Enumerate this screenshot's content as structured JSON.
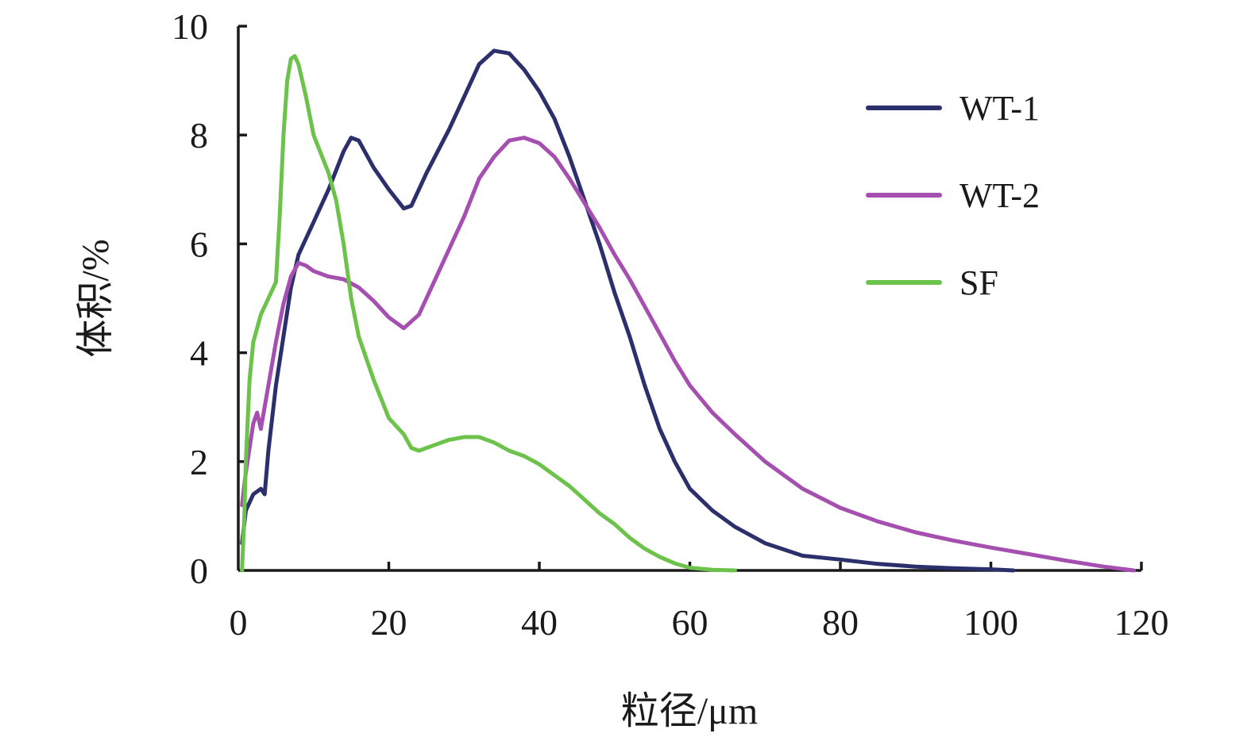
{
  "chart_data": {
    "type": "line",
    "xlabel": "粒径/μm",
    "ylabel": "体积/%",
    "xlim": [
      0,
      120
    ],
    "ylim": [
      0,
      10
    ],
    "xticks": [
      0,
      20,
      40,
      60,
      80,
      100,
      120
    ],
    "yticks": [
      0,
      2,
      4,
      6,
      8,
      10
    ],
    "xtick_labels": [
      "0",
      "20",
      "40",
      "60",
      "80",
      "100",
      "120"
    ],
    "ytick_labels": [
      "0",
      "2",
      "4",
      "6",
      "8",
      "10"
    ],
    "grid": false,
    "legend_position": "top-right",
    "series": [
      {
        "name": "WT-1",
        "color": "#2b2f6b",
        "points": [
          [
            0.5,
            0.5
          ],
          [
            1,
            1.1
          ],
          [
            2,
            1.4
          ],
          [
            3,
            1.5
          ],
          [
            3.5,
            1.4
          ],
          [
            4,
            2.2
          ],
          [
            5,
            3.4
          ],
          [
            6,
            4.3
          ],
          [
            7,
            5.2
          ],
          [
            8,
            5.8
          ],
          [
            10,
            6.4
          ],
          [
            12,
            7.0
          ],
          [
            14,
            7.7
          ],
          [
            15,
            7.95
          ],
          [
            16,
            7.9
          ],
          [
            18,
            7.4
          ],
          [
            20,
            7.0
          ],
          [
            22,
            6.65
          ],
          [
            23,
            6.7
          ],
          [
            25,
            7.3
          ],
          [
            28,
            8.1
          ],
          [
            30,
            8.7
          ],
          [
            32,
            9.3
          ],
          [
            34,
            9.55
          ],
          [
            36,
            9.5
          ],
          [
            38,
            9.2
          ],
          [
            40,
            8.8
          ],
          [
            42,
            8.3
          ],
          [
            44,
            7.6
          ],
          [
            46,
            6.8
          ],
          [
            48,
            6.0
          ],
          [
            50,
            5.1
          ],
          [
            52,
            4.3
          ],
          [
            54,
            3.4
          ],
          [
            56,
            2.6
          ],
          [
            58,
            2.0
          ],
          [
            60,
            1.5
          ],
          [
            63,
            1.1
          ],
          [
            66,
            0.8
          ],
          [
            70,
            0.5
          ],
          [
            75,
            0.27
          ],
          [
            80,
            0.2
          ],
          [
            85,
            0.12
          ],
          [
            90,
            0.07
          ],
          [
            95,
            0.04
          ],
          [
            100,
            0.02
          ],
          [
            103,
            0.0
          ]
        ]
      },
      {
        "name": "WT-2",
        "color": "#a54fb0",
        "points": [
          [
            0.5,
            1.2
          ],
          [
            1,
            1.8
          ],
          [
            2,
            2.7
          ],
          [
            2.5,
            2.9
          ],
          [
            3,
            2.6
          ],
          [
            4,
            3.4
          ],
          [
            5,
            4.2
          ],
          [
            6,
            4.9
          ],
          [
            7,
            5.4
          ],
          [
            8,
            5.65
          ],
          [
            9,
            5.6
          ],
          [
            10,
            5.5
          ],
          [
            12,
            5.4
          ],
          [
            14,
            5.35
          ],
          [
            16,
            5.2
          ],
          [
            18,
            4.95
          ],
          [
            20,
            4.65
          ],
          [
            22,
            4.45
          ],
          [
            24,
            4.7
          ],
          [
            26,
            5.3
          ],
          [
            28,
            5.9
          ],
          [
            30,
            6.5
          ],
          [
            32,
            7.2
          ],
          [
            34,
            7.6
          ],
          [
            36,
            7.9
          ],
          [
            38,
            7.95
          ],
          [
            40,
            7.85
          ],
          [
            42,
            7.6
          ],
          [
            44,
            7.2
          ],
          [
            46,
            6.75
          ],
          [
            48,
            6.3
          ],
          [
            50,
            5.8
          ],
          [
            52,
            5.35
          ],
          [
            54,
            4.85
          ],
          [
            56,
            4.35
          ],
          [
            58,
            3.85
          ],
          [
            60,
            3.4
          ],
          [
            63,
            2.9
          ],
          [
            66,
            2.5
          ],
          [
            70,
            2.0
          ],
          [
            75,
            1.5
          ],
          [
            80,
            1.15
          ],
          [
            85,
            0.9
          ],
          [
            90,
            0.7
          ],
          [
            95,
            0.55
          ],
          [
            100,
            0.42
          ],
          [
            105,
            0.3
          ],
          [
            110,
            0.18
          ],
          [
            115,
            0.07
          ],
          [
            119,
            0.0
          ]
        ]
      },
      {
        "name": "SF",
        "color": "#6cc24a",
        "points": [
          [
            0.5,
            0.0
          ],
          [
            0.8,
            1.0
          ],
          [
            1,
            2.0
          ],
          [
            1.5,
            3.5
          ],
          [
            2,
            4.2
          ],
          [
            3,
            4.7
          ],
          [
            4,
            5.0
          ],
          [
            5,
            5.3
          ],
          [
            5.5,
            6.5
          ],
          [
            6,
            8.0
          ],
          [
            6.5,
            9.0
          ],
          [
            7,
            9.4
          ],
          [
            7.5,
            9.45
          ],
          [
            8,
            9.3
          ],
          [
            9,
            8.7
          ],
          [
            10,
            8.0
          ],
          [
            12,
            7.3
          ],
          [
            13,
            6.8
          ],
          [
            14,
            6.0
          ],
          [
            15,
            5.0
          ],
          [
            16,
            4.3
          ],
          [
            18,
            3.5
          ],
          [
            20,
            2.8
          ],
          [
            22,
            2.5
          ],
          [
            23,
            2.25
          ],
          [
            24,
            2.2
          ],
          [
            26,
            2.3
          ],
          [
            28,
            2.4
          ],
          [
            30,
            2.45
          ],
          [
            32,
            2.45
          ],
          [
            34,
            2.35
          ],
          [
            36,
            2.2
          ],
          [
            38,
            2.1
          ],
          [
            40,
            1.95
          ],
          [
            42,
            1.75
          ],
          [
            44,
            1.55
          ],
          [
            46,
            1.3
          ],
          [
            48,
            1.05
          ],
          [
            50,
            0.85
          ],
          [
            52,
            0.6
          ],
          [
            54,
            0.4
          ],
          [
            56,
            0.25
          ],
          [
            58,
            0.13
          ],
          [
            60,
            0.05
          ],
          [
            63,
            0.01
          ],
          [
            66,
            0.0
          ]
        ]
      }
    ]
  }
}
